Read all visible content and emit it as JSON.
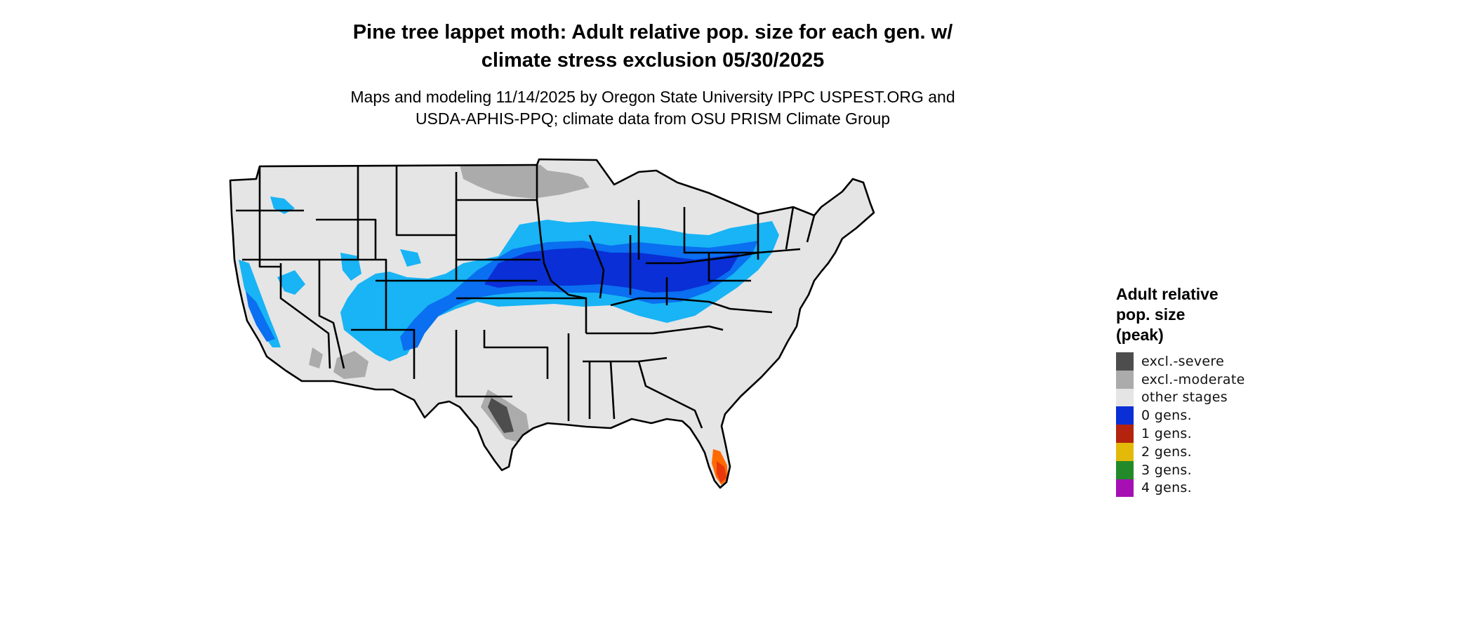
{
  "title_line1": "Pine tree lappet moth: Adult relative pop. size for each gen. w/",
  "title_line2": "climate stress exclusion 05/30/2025",
  "subtitle_line1": "Maps and modeling 11/14/2025 by Oregon State University IPPC USPEST.ORG and",
  "subtitle_line2": "USDA-APHIS-PPQ; climate data from OSU PRISM Climate Group",
  "legend": {
    "title_line1": "Adult relative",
    "title_line2": "pop. size",
    "title_line3": "(peak)",
    "items": [
      {
        "label": "excl.-severe",
        "color": "#4d4d4d"
      },
      {
        "label": "excl.-moderate",
        "color": "#ababab"
      },
      {
        "label": "other stages",
        "color": "#e5e5e5"
      },
      {
        "label": "0 gens.",
        "color": "#0a2fd6"
      },
      {
        "label": "1 gens.",
        "color": "#b3230e"
      },
      {
        "label": "2 gens.",
        "color": "#e3b90a"
      },
      {
        "label": "3 gens.",
        "color": "#238a2a"
      },
      {
        "label": "4 gens.",
        "color": "#a60fb3"
      }
    ]
  },
  "map_colors": {
    "land": "#e5e5e5",
    "excl_severe": "#4d4d4d",
    "excl_moderate": "#ababab",
    "light_blue": "#18b4f5",
    "mid_blue": "#0a6ff0",
    "dark_blue": "#0a2fd6",
    "florida_red": "#e8380c",
    "florida_orange": "#ff6a00",
    "borders": "#000000"
  }
}
